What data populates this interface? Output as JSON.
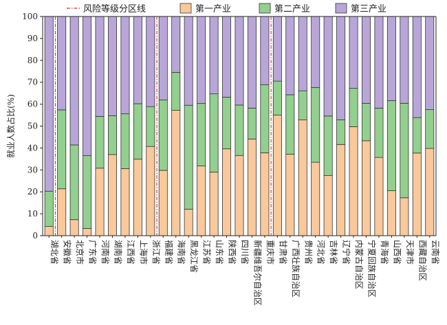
{
  "chart_data": {
    "type": "bar",
    "stacked": true,
    "ylabel": "就业人数占比(%)",
    "ylim": [
      0,
      100
    ],
    "yticks": [
      0,
      10,
      20,
      30,
      40,
      50,
      60,
      70,
      80,
      90,
      100
    ],
    "categories": [
      "湖北省",
      "安徽省",
      "北京市",
      "广东省",
      "河南省",
      "湖南省",
      "江西省",
      "上海市",
      "浙江省",
      "福建省",
      "海南省",
      "黑龙江省",
      "江苏省",
      "山东省",
      "陕西省",
      "四川省",
      "新疆维吾尔自治区",
      "重庆市",
      "甘肃省",
      "广西壮族自治区",
      "贵州省",
      "河北省",
      "吉林省",
      "辽宁省",
      "内蒙古自治区",
      "宁夏回族自治区",
      "青海省",
      "山西省",
      "天津市",
      "西藏自治区",
      "云南省"
    ],
    "series": [
      {
        "name": "第一产业",
        "color": "#f9c89b",
        "values": [
          4.2,
          21.4,
          7.3,
          3.3,
          30.8,
          37.0,
          30.6,
          34.9,
          40.7,
          29.8,
          57.2,
          12.1,
          31.8,
          29.0,
          39.6,
          36.6,
          44.1,
          37.8,
          55.0,
          37.2,
          52.8,
          33.5,
          27.4,
          41.6,
          49.7,
          43.3,
          35.7,
          20.5,
          17.3,
          37.7,
          39.8
        ]
      },
      {
        "name": "第二产业",
        "color": "#93cf8e",
        "values": [
          16.1,
          36.0,
          34.1,
          33.2,
          23.6,
          17.7,
          25.0,
          25.3,
          18.2,
          32.1,
          17.3,
          47.4,
          28.5,
          35.7,
          23.6,
          23.0,
          14.1,
          31.1,
          15.5,
          27.1,
          13.3,
          34.1,
          27.2,
          11.3,
          17.5,
          17.1,
          22.5,
          41.1,
          43.1,
          16.2,
          17.7
        ]
      },
      {
        "name": "第三产业",
        "color": "#b8a6d9",
        "values": [
          79.7,
          42.6,
          58.6,
          63.5,
          45.6,
          45.3,
          44.4,
          39.8,
          41.1,
          38.1,
          25.5,
          40.5,
          39.7,
          35.3,
          36.8,
          40.4,
          41.8,
          31.1,
          29.5,
          35.7,
          33.9,
          32.4,
          45.4,
          47.1,
          32.8,
          39.6,
          41.8,
          38.4,
          39.6,
          46.1,
          42.5
        ]
      }
    ],
    "risk_dividers": {
      "name": "风险等级分区线",
      "color": "#c0392b",
      "after_categories": [
        "湖北省",
        "浙江省",
        "重庆市"
      ]
    },
    "legend_position": "top",
    "grid": false
  }
}
